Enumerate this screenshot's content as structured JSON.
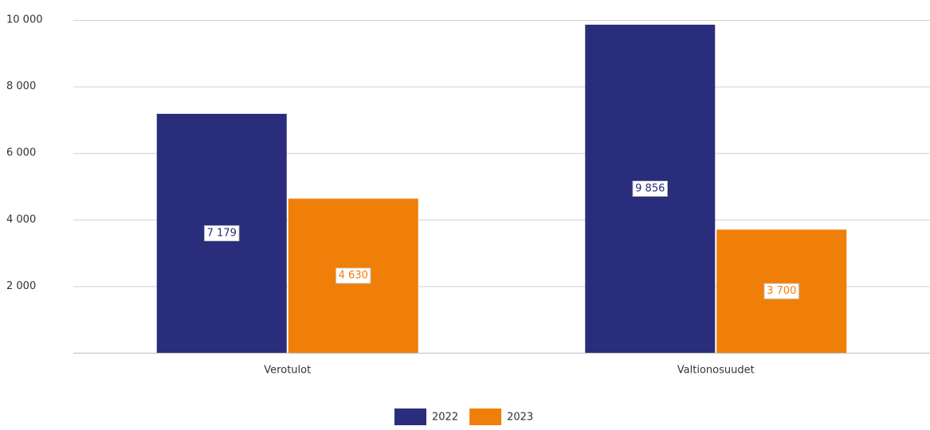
{
  "chart_data": {
    "type": "bar",
    "categories": [
      "Verotulot",
      "Valtionosuudet"
    ],
    "series": [
      {
        "name": "2022",
        "color": "#2a2d7c",
        "values": [
          7179,
          9856
        ],
        "value_labels": [
          "7 179",
          "9 856"
        ]
      },
      {
        "name": "2023",
        "color": "#f07f09",
        "values": [
          4630,
          3700
        ],
        "value_labels": [
          "4 630",
          "3 700"
        ]
      }
    ],
    "ylim": [
      0,
      10000
    ],
    "yticks": [
      {
        "value": 2000,
        "label": "2 000"
      },
      {
        "value": 4000,
        "label": "4 000"
      },
      {
        "value": 6000,
        "label": "6 000"
      },
      {
        "value": 8000,
        "label": "8 000"
      },
      {
        "value": 10000,
        "label": "10 000"
      }
    ],
    "grid": true,
    "legend": "bottom"
  }
}
